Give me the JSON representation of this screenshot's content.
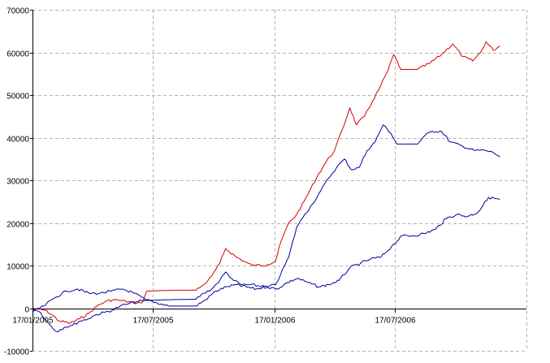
{
  "chart_data": {
    "type": "line",
    "title": "",
    "xlabel": "",
    "ylabel": "",
    "grid": true,
    "legend": "none",
    "xlim": [
      "2005-01-17",
      "2007-01-31"
    ],
    "ylim": [
      -10000,
      70000
    ],
    "y_ticks": [
      -10000,
      0,
      10000,
      20000,
      30000,
      40000,
      50000,
      60000,
      70000
    ],
    "y_tick_labels": [
      "-10000",
      "0",
      "10000",
      "20000",
      "30000",
      "40000",
      "50000",
      "60000",
      "70000"
    ],
    "x_ticks": [
      "2005-01-17",
      "2005-07-17",
      "2006-01-17",
      "2006-07-17"
    ],
    "x_tick_labels": [
      "17/01/2005",
      "17/07/2005",
      "17/01/2006",
      "17/07/2006"
    ],
    "series": [
      {
        "color": "#d40000",
        "points": [
          [
            "2005-01-17",
            0
          ],
          [
            "2005-02-05",
            -500
          ],
          [
            "2005-02-15",
            -1500
          ],
          [
            "2005-02-26",
            -3000
          ],
          [
            "2005-03-15",
            -3500
          ],
          [
            "2005-03-29",
            -2500
          ],
          [
            "2005-04-12",
            -1200
          ],
          [
            "2005-04-24",
            500
          ],
          [
            "2005-05-06",
            1500
          ],
          [
            "2005-05-18",
            2000
          ],
          [
            "2005-05-30",
            1800
          ],
          [
            "2005-06-11",
            1500
          ],
          [
            "2005-06-24",
            1200
          ],
          [
            "2005-07-02",
            1500
          ],
          [
            "2005-07-08",
            4000
          ],
          [
            "2005-08-15",
            4200
          ],
          [
            "2005-09-20",
            4200
          ],
          [
            "2005-10-02",
            5500
          ],
          [
            "2005-10-14",
            7500
          ],
          [
            "2005-10-26",
            10500
          ],
          [
            "2005-11-04",
            14000
          ],
          [
            "2005-11-20",
            12000
          ],
          [
            "2005-12-02",
            11000
          ],
          [
            "2005-12-14",
            10000
          ],
          [
            "2006-01-06",
            10200
          ],
          [
            "2006-01-18",
            11000
          ],
          [
            "2006-01-26",
            15500
          ],
          [
            "2006-02-07",
            20000
          ],
          [
            "2006-02-19",
            22000
          ],
          [
            "2006-03-02",
            25000
          ],
          [
            "2006-03-12",
            28000
          ],
          [
            "2006-03-24",
            31500
          ],
          [
            "2006-04-05",
            34500
          ],
          [
            "2006-04-17",
            37000
          ],
          [
            "2006-04-29",
            42000
          ],
          [
            "2006-05-10",
            47000
          ],
          [
            "2006-05-20",
            43000
          ],
          [
            "2006-06-01",
            45000
          ],
          [
            "2006-06-13",
            48500
          ],
          [
            "2006-06-25",
            52000
          ],
          [
            "2006-07-07",
            56000
          ],
          [
            "2006-07-15",
            59500
          ],
          [
            "2006-07-26",
            56000
          ],
          [
            "2006-08-20",
            56000
          ],
          [
            "2006-09-08",
            57500
          ],
          [
            "2006-09-25",
            59500
          ],
          [
            "2006-10-12",
            62000
          ],
          [
            "2006-10-27",
            59000
          ],
          [
            "2006-11-11",
            58000
          ],
          [
            "2006-11-23",
            60000
          ],
          [
            "2006-12-01",
            62500
          ],
          [
            "2006-12-12",
            60500
          ],
          [
            "2006-12-22",
            61500
          ]
        ]
      },
      {
        "color": "#0000a0",
        "points": [
          [
            "2005-01-17",
            0
          ],
          [
            "2005-01-29",
            -1000
          ],
          [
            "2005-02-10",
            -3500
          ],
          [
            "2005-02-22",
            -5500
          ],
          [
            "2005-03-06",
            -4500
          ],
          [
            "2005-03-18",
            -4000
          ],
          [
            "2005-03-30",
            -3000
          ],
          [
            "2005-04-11",
            -2500
          ],
          [
            "2005-04-23",
            -1500
          ],
          [
            "2005-05-05",
            -1000
          ],
          [
            "2005-05-17",
            -500
          ],
          [
            "2005-05-29",
            500
          ],
          [
            "2005-06-10",
            1000
          ],
          [
            "2005-06-22",
            1500
          ],
          [
            "2005-07-04",
            1800
          ],
          [
            "2005-08-15",
            2000
          ],
          [
            "2005-09-20",
            2100
          ],
          [
            "2005-10-02",
            3500
          ],
          [
            "2005-10-14",
            4500
          ],
          [
            "2005-10-26",
            6500
          ],
          [
            "2005-11-04",
            8500
          ],
          [
            "2005-11-16",
            6500
          ],
          [
            "2005-11-28",
            5500
          ],
          [
            "2005-12-10",
            5500
          ],
          [
            "2006-01-06",
            5000
          ],
          [
            "2006-01-18",
            5500
          ],
          [
            "2006-01-26",
            8000
          ],
          [
            "2006-02-07",
            12000
          ],
          [
            "2006-02-19",
            19000
          ],
          [
            "2006-03-03",
            22000
          ],
          [
            "2006-03-15",
            24500
          ],
          [
            "2006-03-27",
            27500
          ],
          [
            "2006-04-08",
            30500
          ],
          [
            "2006-04-20",
            33000
          ],
          [
            "2006-05-02",
            35000
          ],
          [
            "2006-05-12",
            32500
          ],
          [
            "2006-05-24",
            33000
          ],
          [
            "2006-06-05",
            37000
          ],
          [
            "2006-06-17",
            39000
          ],
          [
            "2006-06-29",
            43000
          ],
          [
            "2006-07-11",
            41000
          ],
          [
            "2006-07-20",
            38500
          ],
          [
            "2006-08-20",
            38500
          ],
          [
            "2006-08-31",
            40500
          ],
          [
            "2006-09-11",
            41500
          ],
          [
            "2006-09-25",
            41500
          ],
          [
            "2006-10-08",
            39000
          ],
          [
            "2006-10-27",
            38000
          ],
          [
            "2006-11-13",
            37000
          ],
          [
            "2006-11-30",
            37000
          ],
          [
            "2006-12-12",
            36500
          ],
          [
            "2006-12-22",
            35500
          ]
        ]
      },
      {
        "color": "#0000a0",
        "points": [
          [
            "2005-01-17",
            -1000
          ],
          [
            "2005-02-03",
            500
          ],
          [
            "2005-02-20",
            2500
          ],
          [
            "2005-03-09",
            4000
          ],
          [
            "2005-03-26",
            4500
          ],
          [
            "2005-04-12",
            3500
          ],
          [
            "2005-04-29",
            3500
          ],
          [
            "2005-05-16",
            4000
          ],
          [
            "2005-06-02",
            4500
          ],
          [
            "2005-06-19",
            3500
          ],
          [
            "2005-07-06",
            2000
          ],
          [
            "2005-08-10",
            500
          ],
          [
            "2005-09-20",
            500
          ],
          [
            "2005-10-05",
            2000
          ],
          [
            "2005-10-20",
            4000
          ],
          [
            "2005-11-05",
            5000
          ],
          [
            "2005-11-20",
            5500
          ],
          [
            "2005-12-05",
            5000
          ],
          [
            "2005-12-20",
            4500
          ],
          [
            "2006-01-05",
            5000
          ],
          [
            "2006-01-20",
            4500
          ],
          [
            "2006-02-05",
            6000
          ],
          [
            "2006-02-20",
            7000
          ],
          [
            "2006-03-08",
            6000
          ],
          [
            "2006-03-24",
            5000
          ],
          [
            "2006-04-08",
            5500
          ],
          [
            "2006-04-24",
            6500
          ],
          [
            "2006-05-10",
            9500
          ],
          [
            "2006-05-26",
            10500
          ],
          [
            "2006-06-10",
            11500
          ],
          [
            "2006-06-26",
            12000
          ],
          [
            "2006-07-12",
            14500
          ],
          [
            "2006-07-28",
            17000
          ],
          [
            "2006-08-14",
            17000
          ],
          [
            "2006-08-30",
            17500
          ],
          [
            "2006-09-16",
            18500
          ],
          [
            "2006-10-02",
            21000
          ],
          [
            "2006-10-18",
            22000
          ],
          [
            "2006-11-03",
            21500
          ],
          [
            "2006-11-19",
            22500
          ],
          [
            "2006-12-05",
            26000
          ],
          [
            "2006-12-22",
            25500
          ]
        ]
      }
    ]
  }
}
